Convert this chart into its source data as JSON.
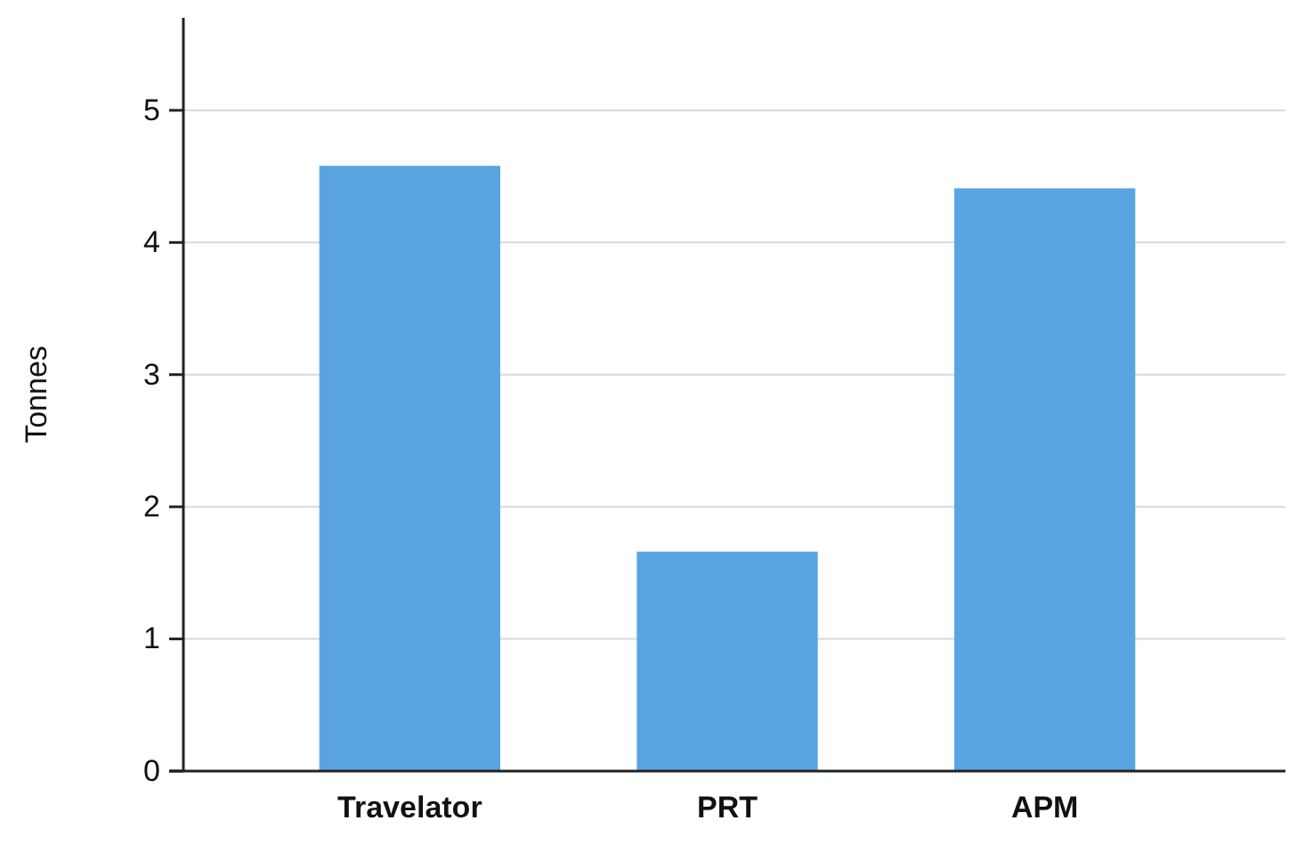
{
  "chart_data": {
    "type": "bar",
    "ylabel": "Tonnes",
    "categories": [
      "Travelator",
      "PRT",
      "APM"
    ],
    "values": [
      4.58,
      1.66,
      4.41
    ],
    "color": "#5aa5e1",
    "ylim": [
      0,
      5.7
    ],
    "yticks": [
      0,
      1,
      2,
      3,
      4,
      5
    ],
    "grid": "y"
  }
}
